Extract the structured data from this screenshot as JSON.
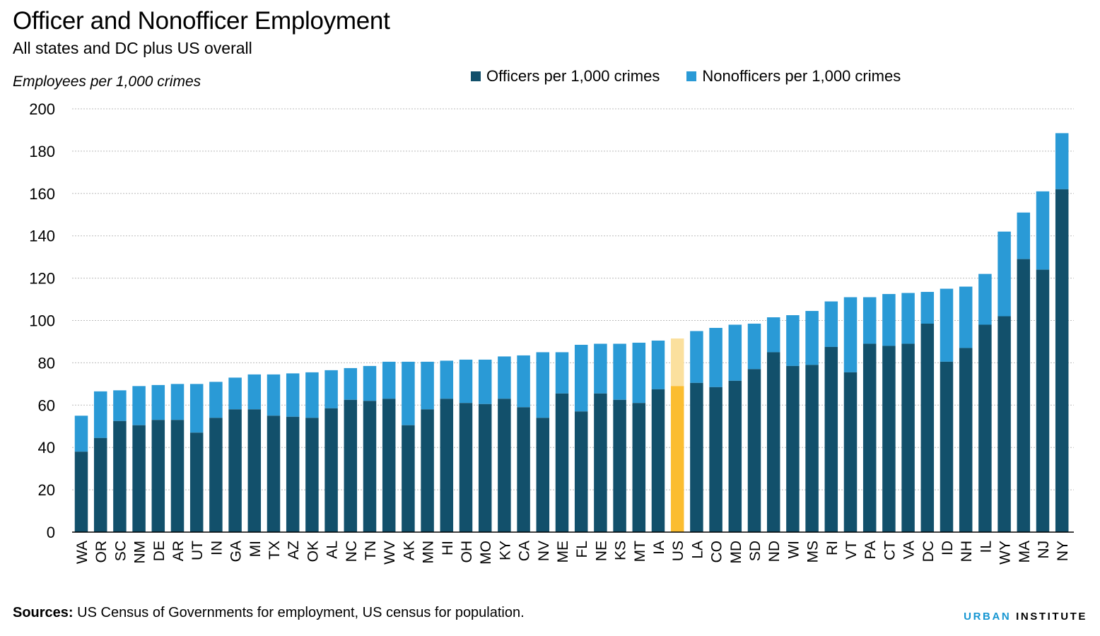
{
  "title": "Officer and Nonofficer Employment",
  "subtitle": "All states and DC plus US overall",
  "ylabel": "Employees per 1,000 crimes",
  "legend": {
    "officers": "Officers per 1,000 crimes",
    "nonofficers": "Nonofficers per 1,000 crimes"
  },
  "source_label": "Sources:",
  "source_text": "US Census of Governments for employment, US census for population.",
  "brand": {
    "part1": "URBAN",
    "part2": "INSTITUTE"
  },
  "colors": {
    "officers": "#12506b",
    "nonofficers": "#2a9ad6",
    "highlight_officers": "#fbbd30",
    "highlight_nonofficers": "#fbe09e",
    "grid": "#bbbbbb"
  },
  "chart_data": {
    "type": "bar",
    "stacked": true,
    "categories": [
      "WA",
      "OR",
      "SC",
      "NM",
      "DE",
      "AR",
      "UT",
      "IN",
      "GA",
      "MI",
      "TX",
      "AZ",
      "OK",
      "AL",
      "NC",
      "TN",
      "WV",
      "AK",
      "MN",
      "HI",
      "OH",
      "MO",
      "KY",
      "CA",
      "NV",
      "ME",
      "FL",
      "NE",
      "KS",
      "MT",
      "IA",
      "US",
      "LA",
      "CO",
      "MD",
      "SD",
      "ND",
      "WI",
      "MS",
      "RI",
      "VT",
      "PA",
      "CT",
      "VA",
      "DC",
      "ID",
      "NH",
      "IL",
      "WY",
      "MA",
      "NJ",
      "NY"
    ],
    "highlight": "US",
    "series": [
      {
        "name": "Officers per 1,000 crimes",
        "values": [
          38,
          44.5,
          52.5,
          50.5,
          53,
          53,
          47,
          54,
          58,
          58,
          55,
          54.5,
          54,
          58.5,
          62.5,
          62,
          63,
          50.5,
          58,
          63,
          61,
          60.5,
          63,
          59,
          54,
          65.5,
          57,
          65.5,
          62.5,
          61,
          67.5,
          69,
          70.5,
          68.5,
          71.5,
          77,
          85,
          78.5,
          79,
          87.5,
          75.5,
          89,
          88,
          89,
          98.5,
          80.5,
          87,
          98,
          102,
          129,
          124,
          162
        ]
      },
      {
        "name": "Nonofficers per 1,000 crimes",
        "values": [
          17,
          22,
          14.5,
          18.5,
          16.5,
          17,
          23,
          17,
          15,
          16.5,
          19.5,
          20.5,
          21.5,
          18,
          15,
          16.5,
          17.5,
          30,
          22.5,
          18,
          20.5,
          21,
          20,
          24.5,
          31,
          19.5,
          31.5,
          23.5,
          26.5,
          28.5,
          23,
          22.5,
          24.5,
          28,
          26.5,
          21.5,
          16.5,
          24,
          25.5,
          21.5,
          35.5,
          22,
          24.5,
          24,
          15,
          34.5,
          29,
          24,
          40,
          22,
          37,
          26.5
        ]
      }
    ],
    "ylim": [
      0,
      200
    ],
    "yticks": [
      0,
      20,
      40,
      60,
      80,
      100,
      120,
      140,
      160,
      180,
      200
    ],
    "grid": true,
    "legend_position": "top"
  }
}
